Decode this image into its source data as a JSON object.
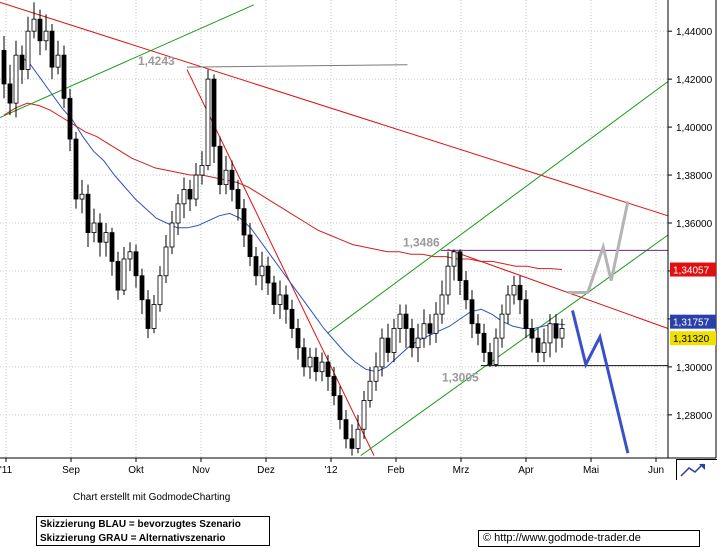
{
  "chart_data": {
    "type": "candlestick",
    "y_ticks": [
      "1,28000",
      "1,30000",
      "1,32000",
      "1,34000",
      "1,36000",
      "1,38000",
      "1,40000",
      "1,42000",
      "1,44000"
    ],
    "y_tick_values": [
      1.28,
      1.3,
      1.32,
      1.34,
      1.36,
      1.38,
      1.4,
      1.42,
      1.44
    ],
    "x_ticks": [
      "'11",
      "Sep",
      "Okt",
      "Nov",
      "Dez",
      "'12",
      "Feb",
      "Mrz",
      "Apr",
      "Mai",
      "Jun"
    ],
    "ylim": [
      1.262,
      1.453
    ],
    "grid": true,
    "price_labels": [
      {
        "text": "1,34057",
        "value": 1.3406,
        "color": "#e01010"
      },
      {
        "text": "1,31757",
        "value": 1.3176,
        "color": "#2a3fa8"
      },
      {
        "text": "1,31320",
        "value": 1.3132,
        "color": "#f0e000"
      }
    ],
    "annotations": [
      {
        "text": "1,4243",
        "value": 1.4243
      },
      {
        "text": "1,3486",
        "value": 1.3486
      },
      {
        "text": "1,3005",
        "value": 1.3005
      }
    ],
    "candles": [
      [
        1.432,
        1.418,
        1.438,
        1.412
      ],
      [
        1.418,
        1.41,
        1.426,
        1.405
      ],
      [
        1.41,
        1.43,
        1.436,
        1.404
      ],
      [
        1.43,
        1.424,
        1.434,
        1.418
      ],
      [
        1.424,
        1.44,
        1.446,
        1.42
      ],
      [
        1.44,
        1.445,
        1.452,
        1.437
      ],
      [
        1.445,
        1.436,
        1.449,
        1.43
      ],
      [
        1.436,
        1.44,
        1.447,
        1.432
      ],
      [
        1.44,
        1.425,
        1.443,
        1.42
      ],
      [
        1.425,
        1.43,
        1.436,
        1.422
      ],
      [
        1.43,
        1.412,
        1.434,
        1.408
      ],
      [
        1.412,
        1.395,
        1.416,
        1.39
      ],
      [
        1.395,
        1.37,
        1.398,
        1.366
      ],
      [
        1.37,
        1.372,
        1.378,
        1.364
      ],
      [
        1.372,
        1.356,
        1.376,
        1.35
      ],
      [
        1.356,
        1.36,
        1.366,
        1.352
      ],
      [
        1.36,
        1.352,
        1.364,
        1.346
      ],
      [
        1.352,
        1.356,
        1.36,
        1.346
      ],
      [
        1.356,
        1.344,
        1.358,
        1.338
      ],
      [
        1.344,
        1.332,
        1.348,
        1.328
      ],
      [
        1.332,
        1.345,
        1.35,
        1.33
      ],
      [
        1.345,
        1.348,
        1.352,
        1.34
      ],
      [
        1.348,
        1.338,
        1.351,
        1.333
      ],
      [
        1.338,
        1.328,
        1.341,
        1.322
      ],
      [
        1.328,
        1.316,
        1.332,
        1.312
      ],
      [
        1.316,
        1.326,
        1.33,
        1.314
      ],
      [
        1.326,
        1.338,
        1.342,
        1.323
      ],
      [
        1.338,
        1.35,
        1.355,
        1.335
      ],
      [
        1.35,
        1.36,
        1.365,
        1.347
      ],
      [
        1.36,
        1.368,
        1.372,
        1.355
      ],
      [
        1.368,
        1.374,
        1.379,
        1.362
      ],
      [
        1.374,
        1.37,
        1.378,
        1.365
      ],
      [
        1.37,
        1.38,
        1.385,
        1.367
      ],
      [
        1.38,
        1.384,
        1.39,
        1.376
      ],
      [
        1.384,
        1.42,
        1.424,
        1.382
      ],
      [
        1.42,
        1.392,
        1.422,
        1.385
      ],
      [
        1.392,
        1.376,
        1.396,
        1.372
      ],
      [
        1.376,
        1.382,
        1.388,
        1.372
      ],
      [
        1.382,
        1.374,
        1.386,
        1.369
      ],
      [
        1.374,
        1.366,
        1.378,
        1.361
      ],
      [
        1.366,
        1.355,
        1.37,
        1.35
      ],
      [
        1.355,
        1.346,
        1.36,
        1.342
      ],
      [
        1.346,
        1.338,
        1.35,
        1.334
      ],
      [
        1.338,
        1.342,
        1.348,
        1.332
      ],
      [
        1.342,
        1.335,
        1.346,
        1.33
      ],
      [
        1.335,
        1.326,
        1.338,
        1.322
      ],
      [
        1.326,
        1.33,
        1.336,
        1.32
      ],
      [
        1.33,
        1.324,
        1.334,
        1.318
      ],
      [
        1.324,
        1.316,
        1.328,
        1.312
      ],
      [
        1.316,
        1.308,
        1.32,
        1.303
      ],
      [
        1.308,
        1.3,
        1.312,
        1.296
      ],
      [
        1.3,
        1.304,
        1.308,
        1.295
      ],
      [
        1.304,
        1.298,
        1.308,
        1.294
      ],
      [
        1.298,
        1.302,
        1.306,
        1.294
      ],
      [
        1.302,
        1.296,
        1.305,
        1.29
      ],
      [
        1.296,
        1.288,
        1.3,
        1.284
      ],
      [
        1.288,
        1.278,
        1.292,
        1.274
      ],
      [
        1.278,
        1.27,
        1.282,
        1.266
      ],
      [
        1.27,
        1.266,
        1.276,
        1.263
      ],
      [
        1.266,
        1.274,
        1.28,
        1.264
      ],
      [
        1.274,
        1.286,
        1.29,
        1.27
      ],
      [
        1.286,
        1.294,
        1.3,
        1.283
      ],
      [
        1.294,
        1.3,
        1.306,
        1.29
      ],
      [
        1.3,
        1.312,
        1.316,
        1.296
      ],
      [
        1.312,
        1.306,
        1.318,
        1.302
      ],
      [
        1.306,
        1.316,
        1.32,
        1.302
      ],
      [
        1.316,
        1.322,
        1.326,
        1.31
      ],
      [
        1.322,
        1.316,
        1.326,
        1.308
      ],
      [
        1.316,
        1.308,
        1.32,
        1.304
      ],
      [
        1.308,
        1.312,
        1.318,
        1.302
      ],
      [
        1.312,
        1.318,
        1.324,
        1.308
      ],
      [
        1.318,
        1.314,
        1.322,
        1.309
      ],
      [
        1.314,
        1.322,
        1.327,
        1.31
      ],
      [
        1.322,
        1.33,
        1.336,
        1.318
      ],
      [
        1.33,
        1.342,
        1.348,
        1.326
      ],
      [
        1.342,
        1.348,
        1.349,
        1.336
      ],
      [
        1.348,
        1.336,
        1.349,
        1.33
      ],
      [
        1.336,
        1.328,
        1.34,
        1.324
      ],
      [
        1.328,
        1.318,
        1.332,
        1.312
      ],
      [
        1.318,
        1.314,
        1.322,
        1.309
      ],
      [
        1.314,
        1.306,
        1.318,
        1.302
      ],
      [
        1.306,
        1.301,
        1.31,
        1.3
      ],
      [
        1.301,
        1.312,
        1.316,
        1.3
      ],
      [
        1.312,
        1.322,
        1.326,
        1.308
      ],
      [
        1.322,
        1.33,
        1.334,
        1.318
      ],
      [
        1.33,
        1.334,
        1.338,
        1.326
      ],
      [
        1.334,
        1.328,
        1.338,
        1.322
      ],
      [
        1.328,
        1.316,
        1.332,
        1.312
      ],
      [
        1.316,
        1.312,
        1.32,
        1.306
      ],
      [
        1.312,
        1.306,
        1.316,
        1.302
      ],
      [
        1.306,
        1.31,
        1.316,
        1.302
      ],
      [
        1.31,
        1.318,
        1.322,
        1.304
      ],
      [
        1.318,
        1.312,
        1.322,
        1.306
      ],
      [
        1.312,
        1.316,
        1.32,
        1.308
      ]
    ],
    "sma_blue": [
      1.43,
      1.426,
      1.42,
      1.414,
      1.408,
      1.403,
      1.396,
      1.39,
      1.386,
      1.38,
      1.375,
      1.37,
      1.366,
      1.362,
      1.36,
      1.358,
      1.358,
      1.359,
      1.361,
      1.363,
      1.364,
      1.362,
      1.358,
      1.352,
      1.346,
      1.34,
      1.334,
      1.328,
      1.322,
      1.316,
      1.311,
      1.306,
      1.302,
      1.299,
      1.298,
      1.3,
      1.304,
      1.308,
      1.311,
      1.313,
      1.315,
      1.317,
      1.32,
      1.323,
      1.324,
      1.322,
      1.319,
      1.317,
      1.316,
      1.316,
      1.317,
      1.318,
      1.3176
    ],
    "sma_red": [
      1.405,
      1.408,
      1.41,
      1.409,
      1.407,
      1.404,
      1.401,
      1.398,
      1.396,
      1.393,
      1.39,
      1.387,
      1.385,
      1.383,
      1.382,
      1.381,
      1.38,
      1.38,
      1.379,
      1.378,
      1.377,
      1.375,
      1.372,
      1.369,
      1.366,
      1.363,
      1.36,
      1.357,
      1.355,
      1.353,
      1.351,
      1.35,
      1.349,
      1.348,
      1.348,
      1.347,
      1.347,
      1.346,
      1.346,
      1.345,
      1.345,
      1.344,
      1.344,
      1.343,
      1.342,
      1.342,
      1.341,
      1.341,
      1.3406
    ],
    "trend_lines": [
      {
        "color": "#e01010",
        "from": [
          0,
          1.452
        ],
        "to": [
          1,
          1.363
        ]
      },
      {
        "color": "#e01010",
        "from": [
          0.28,
          1.424
        ],
        "to": [
          0.56,
          1.263
        ]
      },
      {
        "color": "#e01010",
        "from": [
          0.67,
          1.349
        ],
        "to": [
          1,
          1.316
        ]
      },
      {
        "color": "#1a9a1a",
        "from": [
          0,
          1.404
        ],
        "to": [
          0.38,
          1.451
        ]
      },
      {
        "color": "#1a9a1a",
        "from": [
          0.49,
          1.314
        ],
        "to": [
          1,
          1.419
        ]
      },
      {
        "color": "#1a9a1a",
        "from": [
          0.54,
          1.263
        ],
        "to": [
          1,
          1.355
        ]
      },
      {
        "color": "#7a7a7a",
        "from": [
          0.28,
          1.425
        ],
        "to": [
          0.61,
          1.426
        ]
      },
      {
        "color": "#6a2a8a",
        "from": [
          0.66,
          1.3486
        ],
        "to": [
          1,
          1.3486
        ]
      },
      {
        "color": "#111111",
        "from": [
          0.72,
          1.3005
        ],
        "to": [
          1,
          1.3005
        ]
      }
    ],
    "scenario_blue": [
      [
        0.857,
        1.3235
      ],
      [
        0.877,
        1.301
      ],
      [
        0.898,
        1.3125
      ],
      [
        0.94,
        1.264
      ]
    ],
    "scenario_grey": [
      [
        0.85,
        1.331
      ],
      [
        0.88,
        1.331
      ],
      [
        0.903,
        1.35
      ],
      [
        0.915,
        1.336
      ],
      [
        0.94,
        1.369
      ]
    ]
  },
  "footer": {
    "credit": "Chart erstellt mit GodmodeCharting",
    "legend_blue": "Skizzierung BLAU = bevorzugtes Szenario",
    "legend_grey": "Skizzierung GRAU = Alternativszenario",
    "url": "© http://www.godmode-trader.de"
  },
  "colors": {
    "candle_up": "#ffffff",
    "candle_down": "#000000",
    "grid": "#c8c8c8",
    "sma_blue": "#3050c0",
    "sma_red": "#d02020",
    "scenario_blue": "#3a50c8",
    "scenario_grey": "#b4b4b4"
  }
}
